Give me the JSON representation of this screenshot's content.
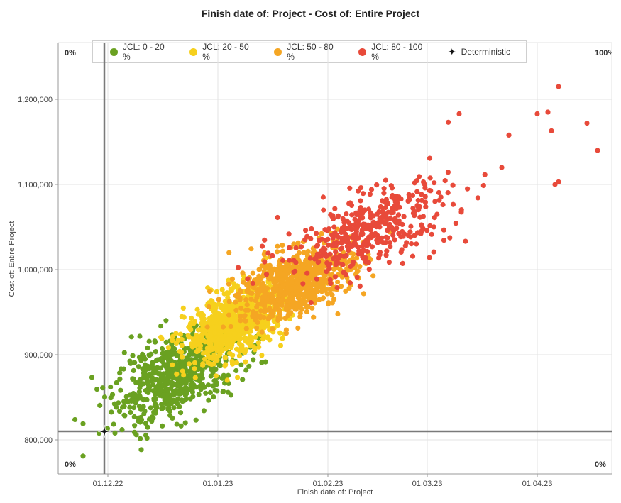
{
  "chart_data": {
    "type": "scatter",
    "title": "Finish date of: Project - Cost of: Entire Project",
    "xlabel": "Finish date of: Project",
    "ylabel": "Cost of: Entire Project",
    "x_ticks": [
      "01.12.22",
      "01.01.23",
      "01.02.23",
      "01.03.23",
      "01.04.23"
    ],
    "y_ticks": [
      "800,000",
      "900,000",
      "1,000,000",
      "1,100,000",
      "1,200,000"
    ],
    "x_range": [
      "2022-11-17",
      "2023-04-22"
    ],
    "y_range": [
      760000,
      1240000
    ],
    "corner_labels": {
      "top_left": "0%",
      "top_right": "100%",
      "bottom_left": "0%",
      "bottom_right": "0%"
    },
    "series": [
      {
        "name": "JCL: 0 - 20 %",
        "color": "#6aa121",
        "center": {
          "x": "2022-12-21",
          "y": 877000
        },
        "spread_days": 9,
        "spread_cost": 28000,
        "corr": 0.55,
        "count": 650
      },
      {
        "name": "JCL: 20 - 50 %",
        "color": "#f6d01d",
        "center": {
          "x": "2023-01-06",
          "y": 937000
        },
        "spread_days": 7,
        "spread_cost": 22000,
        "corr": 0.5,
        "count": 800
      },
      {
        "name": "JCL: 50 - 80 %",
        "color": "#f5a623",
        "center": {
          "x": "2023-01-23",
          "y": 985000
        },
        "spread_days": 8,
        "spread_cost": 22000,
        "corr": 0.5,
        "count": 750
      },
      {
        "name": "JCL: 80 - 100 %",
        "color": "#e84a3a",
        "center": {
          "x": "2023-02-12",
          "y": 1045000
        },
        "spread_days": 12,
        "spread_cost": 28000,
        "corr": 0.6,
        "count": 420
      }
    ],
    "extra_points": {
      "JCL: 0 - 20 %": [
        [
          "2022-11-24",
          781000
        ],
        [
          "2022-11-24",
          819000
        ],
        [
          "2022-12-03",
          808000
        ],
        [
          "2022-12-05",
          812000
        ],
        [
          "2022-12-09",
          806000
        ]
      ],
      "JCL: 80 - 100 %": [
        [
          "2023-04-07",
          1215000
        ],
        [
          "2023-04-04",
          1185000
        ],
        [
          "2023-04-01",
          1183000
        ],
        [
          "2023-04-18",
          1140000
        ],
        [
          "2023-04-15",
          1172000
        ],
        [
          "2023-04-06",
          1100000
        ],
        [
          "2023-04-07",
          1103000
        ],
        [
          "2023-03-24",
          1158000
        ],
        [
          "2023-03-10",
          1183000
        ],
        [
          "2023-03-22",
          1120000
        ],
        [
          "2023-04-05",
          1163000
        ]
      ]
    },
    "deterministic": {
      "name": "Deterministic",
      "x": "2022-11-30",
      "y": 810000
    },
    "grid": true,
    "legend_position": "top"
  }
}
